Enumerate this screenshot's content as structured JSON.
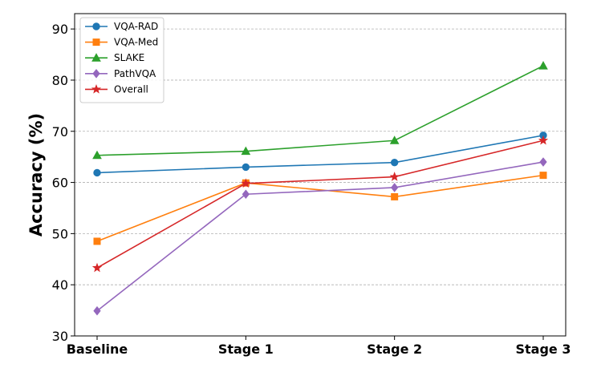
{
  "chart_data": {
    "type": "line",
    "title": "",
    "xlabel": "",
    "ylabel": "Accuracy (%)",
    "categories": [
      "Baseline",
      "Stage 1",
      "Stage 2",
      "Stage 3"
    ],
    "ylim": [
      30,
      93
    ],
    "yticks": [
      30,
      40,
      50,
      60,
      70,
      80,
      90
    ],
    "grid": "y-dashed",
    "legend_position": "top-left",
    "series": [
      {
        "name": "VQA-RAD",
        "values": [
          61.9,
          63.0,
          63.9,
          69.2
        ],
        "color": "#1f77b4",
        "marker": "circle"
      },
      {
        "name": "VQA-Med",
        "values": [
          48.5,
          59.9,
          57.2,
          61.4
        ],
        "color": "#ff7f0e",
        "marker": "square"
      },
      {
        "name": "SLAKE",
        "values": [
          65.3,
          66.1,
          68.2,
          82.8
        ],
        "color": "#2ca02c",
        "marker": "triangle"
      },
      {
        "name": "PathVQA",
        "values": [
          34.9,
          57.7,
          59.0,
          64.0
        ],
        "color": "#9467bd",
        "marker": "diamond"
      },
      {
        "name": "Overall",
        "values": [
          43.3,
          59.8,
          61.1,
          68.2
        ],
        "color": "#d62728",
        "marker": "star"
      }
    ]
  }
}
